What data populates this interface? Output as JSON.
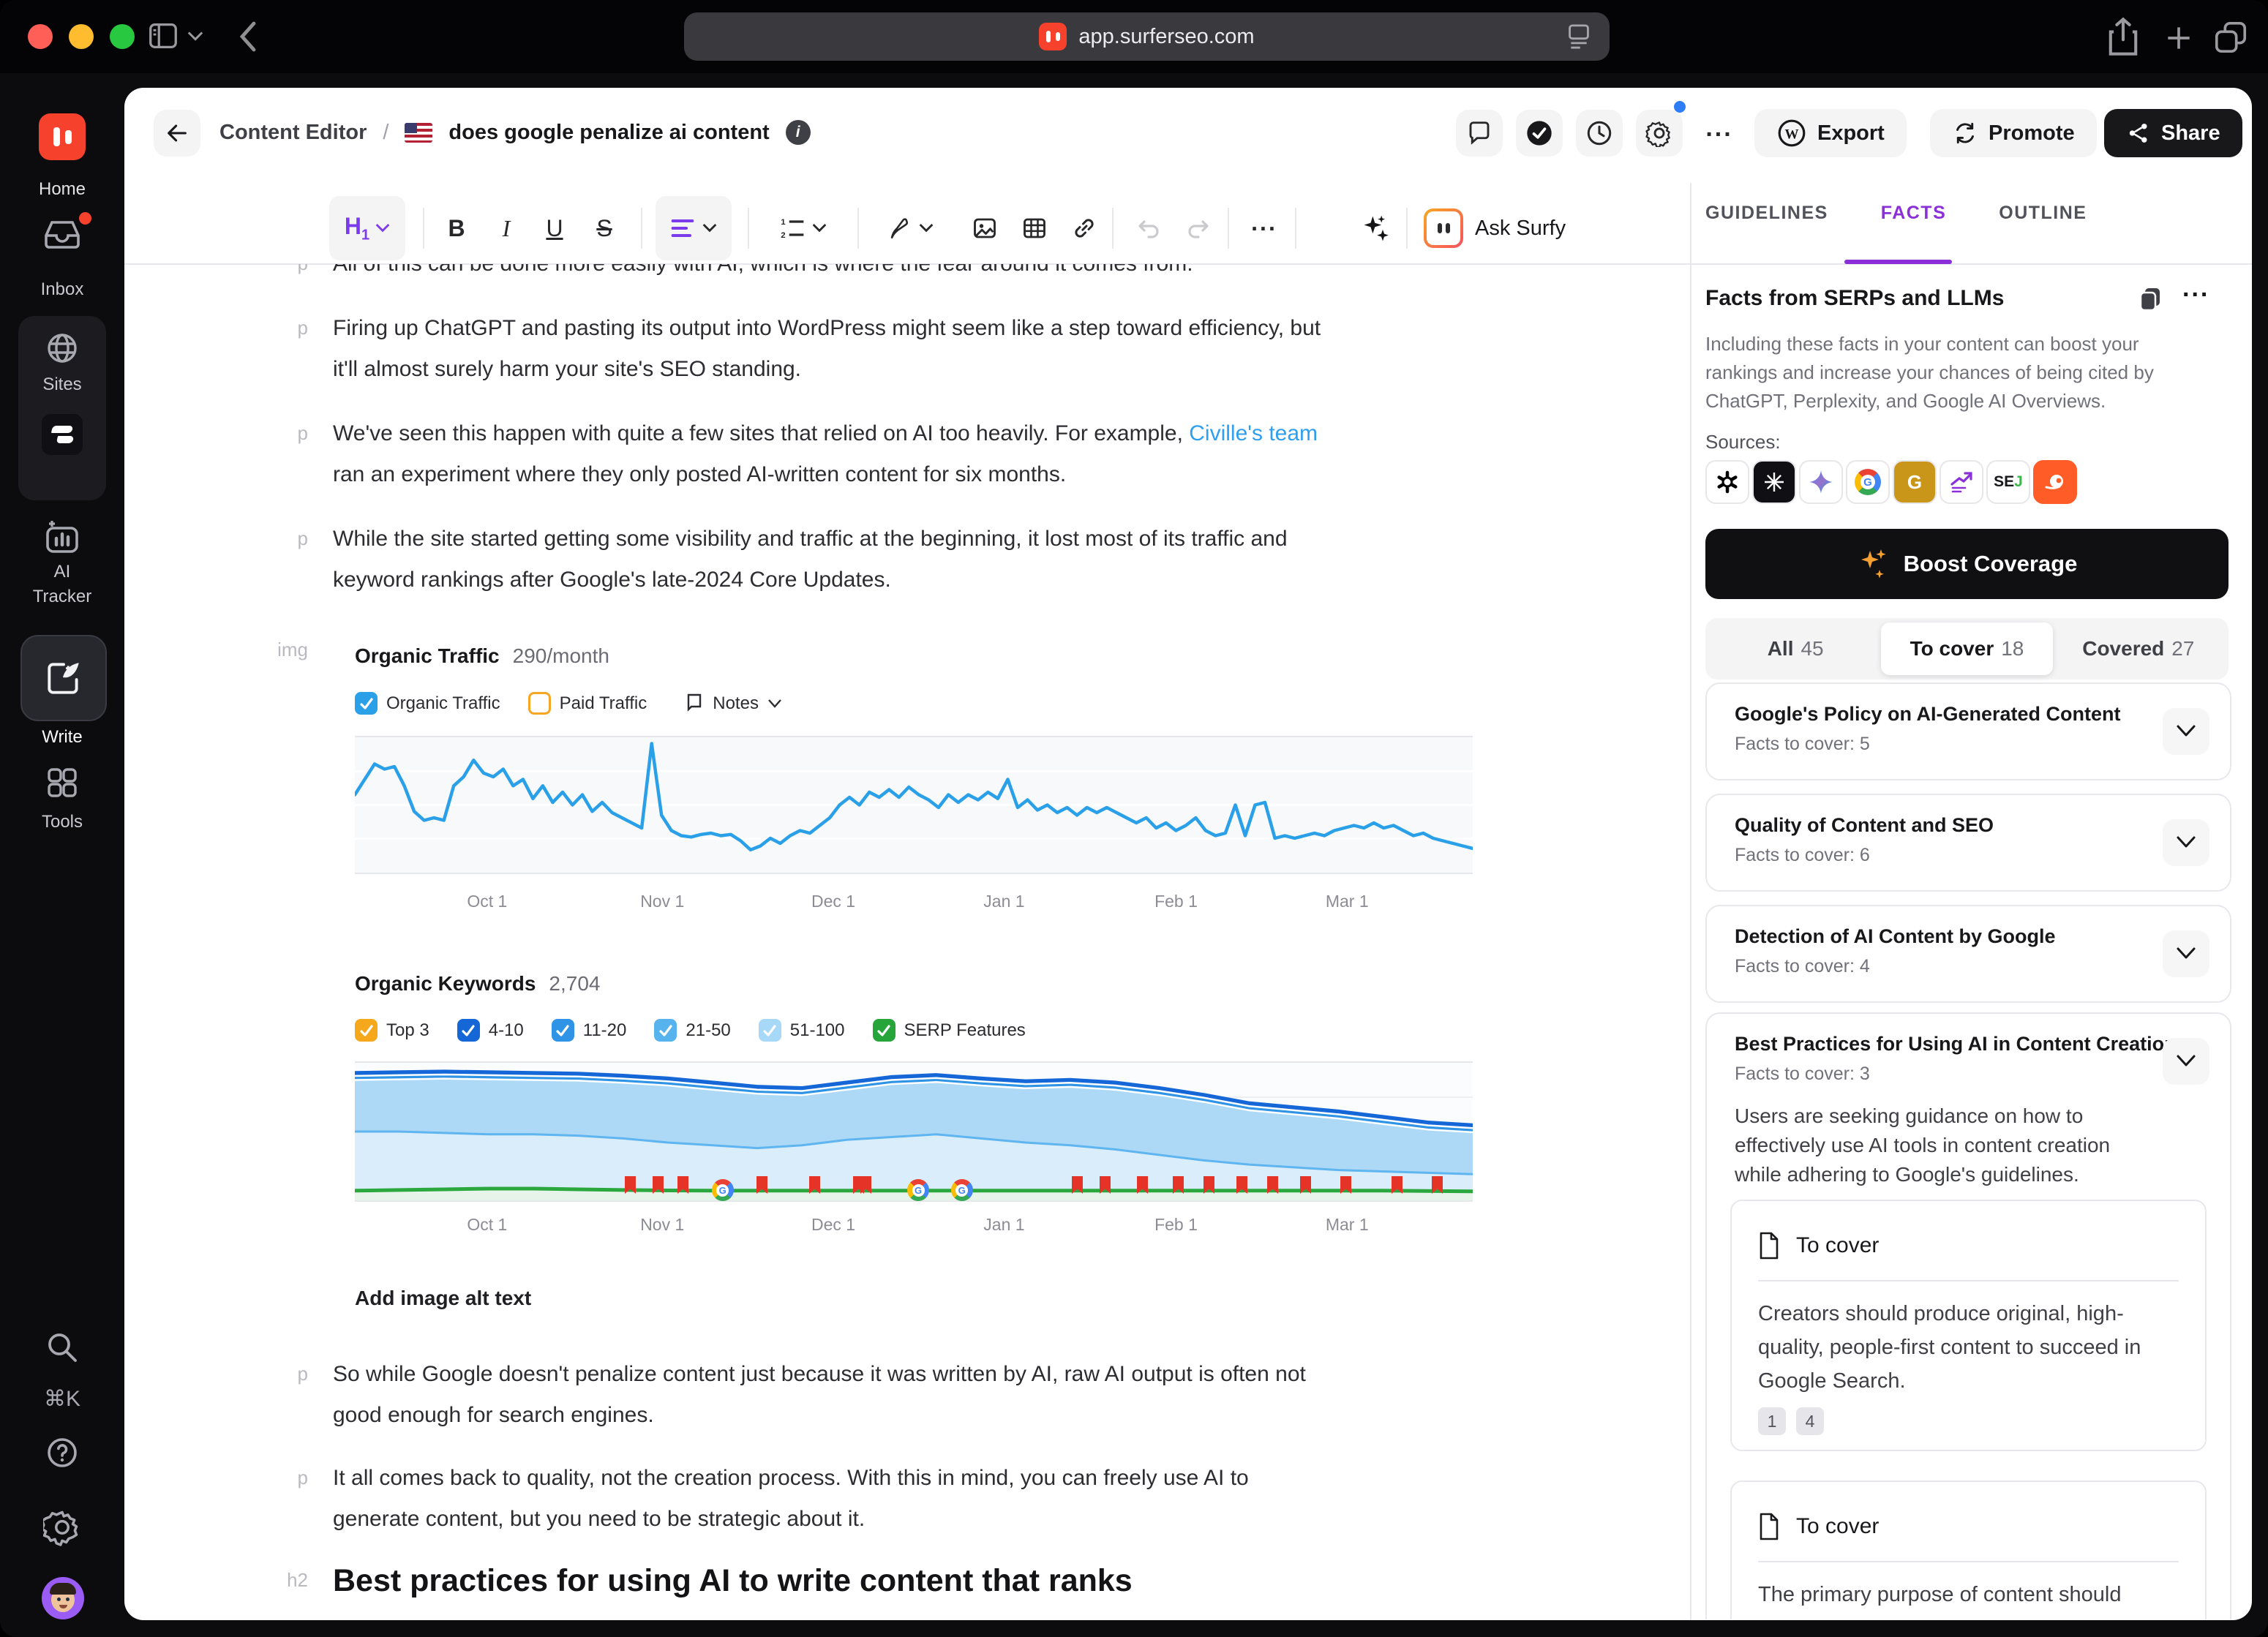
{
  "browser": {
    "url": "app.surferseo.com"
  },
  "sidebar": {
    "home": "Home",
    "inbox": "Inbox",
    "sites": "Sites",
    "ai_tracker_1": "AI",
    "ai_tracker_2": "Tracker",
    "write": "Write",
    "tools": "Tools",
    "shortcut": "⌘K"
  },
  "header": {
    "breadcrumb": "Content Editor",
    "separator": "/",
    "title": "does google penalize ai content",
    "export_label": "Export",
    "promote_label": "Promote",
    "share_label": "Share"
  },
  "toolbar": {
    "h1_label": "H",
    "h1_sub": "1",
    "bold": "B",
    "italic": "I",
    "underline": "U",
    "strike": "S",
    "more": "...",
    "ask_surfy_label": "Ask Surfy"
  },
  "editor": {
    "blocks": [
      {
        "tag": "p",
        "lines": [
          "All of this can be done more easily with AI, which is where the fear around it comes from."
        ]
      },
      {
        "tag": "p",
        "lines": [
          "Firing up ChatGPT and pasting its output into WordPress might seem like a step toward efficiency, but",
          "it'll almost surely harm your site's SEO standing."
        ]
      },
      {
        "tag": "p",
        "line1_pre": "We've seen this happen with quite a few sites that relied on AI too heavily. For example, ",
        "link": "Civille's team",
        "line2": "ran an experiment where they only posted AI-written content for six months."
      },
      {
        "tag": "p",
        "lines": [
          "While the site started getting some visibility and traffic at the beginning, it lost most of its traffic and",
          "keyword rankings after Google's late-2024 Core Updates."
        ]
      },
      {
        "tag": "p",
        "lines": [
          "So while Google doesn't penalize content just because it was written by AI, raw AI output is often not",
          "good enough for search engines."
        ]
      },
      {
        "tag": "p",
        "lines": [
          "It all comes back to quality, not the creation process. With this in mind, you can freely use AI to",
          "generate content, but you need to be strategic about it."
        ]
      },
      {
        "tag": "h2",
        "lines": [
          "Best practices for using AI to write content that ranks"
        ]
      }
    ],
    "img_gutter": "img",
    "alt_text_label": "Add image alt text"
  },
  "chart_data": [
    {
      "type": "line",
      "title": "Organic Traffic",
      "subtitle": "290/month",
      "legend": [
        {
          "label": "Organic Traffic",
          "checked": true,
          "color": "#2aa0e8"
        },
        {
          "label": "Paid Traffic",
          "checked": false,
          "color": "#f5a623"
        },
        {
          "label": "Notes",
          "type": "dropdown"
        }
      ],
      "x_tick_labels": [
        "Oct 1",
        "Nov 1",
        "Dec 1",
        "Jan 1",
        "Feb 1",
        "Mar 1"
      ],
      "x_tick_positions_pct": [
        12,
        27.5,
        42.8,
        58.2,
        73.5,
        88.8
      ],
      "ylim": [
        0,
        100
      ],
      "note": "y-axis unlabeled; values are a relative traffic index estimated from the plot",
      "series": [
        {
          "name": "Organic Traffic",
          "color": "#2aa0e8",
          "values": [
            58,
            70,
            82,
            78,
            80,
            65,
            45,
            38,
            40,
            38,
            65,
            72,
            85,
            75,
            72,
            78,
            65,
            70,
            55,
            65,
            52,
            60,
            50,
            58,
            45,
            52,
            44,
            40,
            36,
            32,
            98,
            42,
            30,
            26,
            25,
            27,
            28,
            26,
            27,
            22,
            15,
            18,
            24,
            20,
            26,
            30,
            28,
            34,
            40,
            50,
            56,
            50,
            60,
            56,
            62,
            56,
            64,
            58,
            54,
            48,
            58,
            52,
            58,
            54,
            60,
            55,
            70,
            48,
            54,
            46,
            50,
            44,
            48,
            42,
            48,
            44,
            48,
            44,
            40,
            36,
            40,
            32,
            36,
            30,
            34,
            40,
            30,
            26,
            28,
            50,
            26,
            50,
            52,
            24,
            26,
            24,
            26,
            28,
            26,
            30,
            32,
            34,
            32,
            36,
            32,
            34,
            30,
            26,
            28,
            24,
            22,
            20,
            18,
            16
          ]
        }
      ]
    },
    {
      "type": "area",
      "title": "Organic Keywords",
      "subtitle": "2,704",
      "legend": [
        {
          "label": "Top 3",
          "checked": true,
          "color": "#f5a81c"
        },
        {
          "label": "4-10",
          "checked": true,
          "color": "#1566d6"
        },
        {
          "label": "11-20",
          "checked": true,
          "color": "#2f93e6"
        },
        {
          "label": "21-50",
          "checked": true,
          "color": "#56b3ee"
        },
        {
          "label": "51-100",
          "checked": true,
          "color": "#a8d8f8"
        },
        {
          "label": "SERP Features",
          "checked": true,
          "color": "#27a53b"
        }
      ],
      "x_tick_labels": [
        "Oct 1",
        "Nov 1",
        "Dec 1",
        "Jan 1",
        "Feb 1",
        "Mar 1"
      ],
      "x_tick_positions_pct": [
        12,
        27.5,
        42.8,
        58.2,
        73.5,
        88.8
      ],
      "ylim": [
        0,
        100
      ],
      "note": "stacked keyword-position bands, % of plot height estimated from pixels",
      "boundaries": {
        "stack_top": [
          94,
          94.5,
          95,
          94.5,
          94,
          93.5,
          92,
          90,
          87,
          84,
          83,
          87,
          91,
          92.5,
          90,
          88,
          89,
          87,
          83,
          78,
          72,
          69,
          66,
          62,
          58,
          56
        ],
        "b_4_10_bottom": [
          90.5,
          91,
          91.5,
          91,
          90.5,
          90,
          88.5,
          86.5,
          83.5,
          80.5,
          79.5,
          83.5,
          87.5,
          89,
          86.5,
          84.5,
          85.5,
          83.5,
          79.5,
          74.5,
          68.5,
          65.5,
          62.5,
          58.5,
          54.5,
          52.5
        ],
        "b_11_20_bottom": [
          87.5,
          88,
          88.5,
          88,
          87.5,
          87,
          85.5,
          83.5,
          80.5,
          77.5,
          76.5,
          80.5,
          84.5,
          86,
          83.5,
          81.5,
          82.5,
          80.5,
          76.5,
          71.5,
          65.5,
          62.5,
          59.5,
          55.5,
          51.5,
          49.5
        ],
        "b_21_50_bottom": [
          50,
          50,
          49,
          48,
          48,
          47,
          45,
          42,
          40,
          38,
          40,
          44,
          46,
          48,
          45,
          42,
          40,
          37,
          33,
          29,
          26,
          24,
          22,
          21,
          20,
          19
        ],
        "serp_features": [
          7,
          7.5,
          8,
          8.5,
          8.5,
          8,
          7.5,
          7.2,
          7,
          7,
          7,
          7,
          7,
          7,
          7,
          7,
          7,
          7,
          7,
          7,
          7,
          7,
          7,
          7,
          6.8,
          6.5
        ]
      },
      "google_update_flags_pct": [
        24.6,
        27.1,
        29.3,
        36.4,
        41.1,
        45.0,
        45.7,
        64.6,
        67.1,
        70.4,
        73.6,
        76.4,
        79.3,
        82.1,
        85.0,
        88.6,
        93.2,
        96.8
      ],
      "google_icon_flags_pct": [
        32.9,
        50.4,
        54.3
      ]
    }
  ],
  "facts_panel": {
    "tabs": [
      {
        "label": "GUIDELINES",
        "active": false
      },
      {
        "label": "FACTS",
        "active": true
      },
      {
        "label": "OUTLINE",
        "active": false
      }
    ],
    "heading": "Facts from SERPs and LLMs",
    "description_lines": [
      "Including these facts in your content can boost your",
      "rankings and increase your chances of being cited by",
      "ChatGPT, Perplexity, and Google AI Overviews."
    ],
    "sources_label": "Sources:",
    "sources": [
      "openai",
      "perplexity",
      "gemini",
      "google",
      "gold-g",
      "trend",
      "sej",
      "semrush"
    ],
    "boost_button": "Boost Coverage",
    "filters": [
      {
        "label": "All",
        "count": "45",
        "active": false
      },
      {
        "label": "To cover",
        "count": "18",
        "active": true
      },
      {
        "label": "Covered",
        "count": "27",
        "active": false
      }
    ],
    "cards": [
      {
        "title": "Google's Policy on AI-Generated Content",
        "facts_to_cover": "Facts to cover: 5",
        "expanded": false
      },
      {
        "title": "Quality of Content and SEO",
        "facts_to_cover": "Facts to cover: 6",
        "expanded": false
      },
      {
        "title": "Detection of AI Content by Google",
        "facts_to_cover": "Facts to cover: 4",
        "expanded": false
      },
      {
        "title": "Best Practices for Using AI in Content Creation",
        "facts_to_cover": "Facts to cover: 3",
        "expanded": true,
        "description_lines": [
          "Users are seeking guidance on how to",
          "effectively use AI tools in content creation",
          "while adhering to Google's guidelines."
        ],
        "facts": [
          {
            "status": "To cover",
            "text_lines": [
              "Creators should produce original, high-",
              "quality, people-first content to succeed in",
              "Google Search."
            ],
            "refs": [
              "1",
              "4"
            ]
          },
          {
            "status": "To cover",
            "text_lines": [
              "The primary purpose of content should"
            ],
            "refs": []
          }
        ]
      }
    ]
  }
}
